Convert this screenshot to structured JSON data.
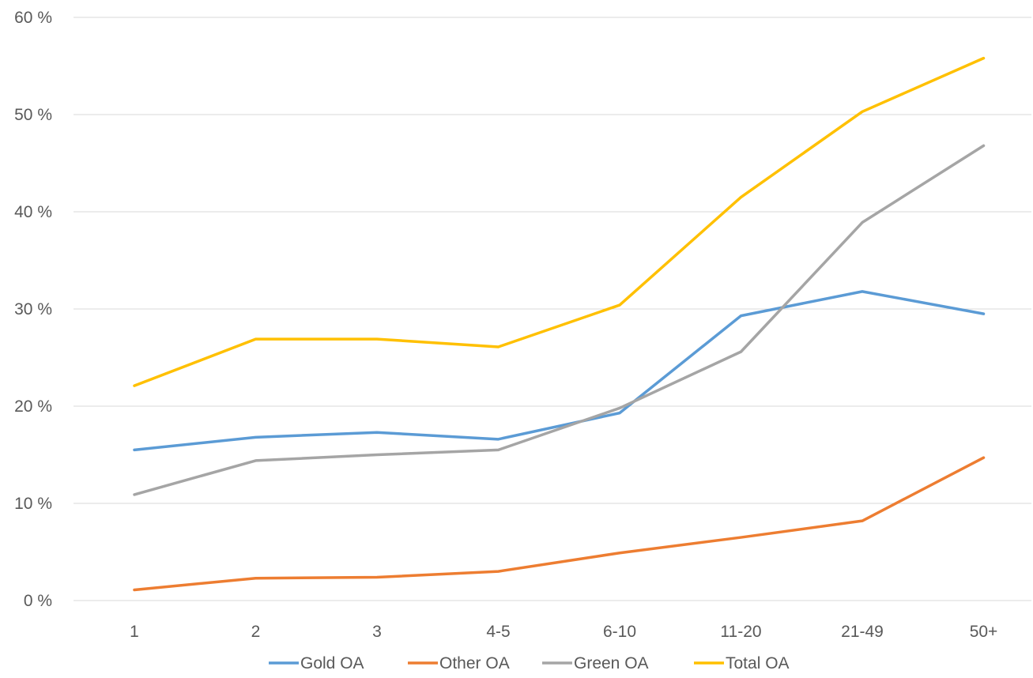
{
  "chart_data": {
    "type": "line",
    "title": "",
    "xlabel": "",
    "ylabel": "",
    "categories": [
      "1",
      "2",
      "3",
      "4-5",
      "6-10",
      "11-20",
      "21-49",
      "50+"
    ],
    "ylim": [
      0,
      60
    ],
    "y_ticks": [
      0,
      10,
      20,
      30,
      40,
      50,
      60
    ],
    "y_tick_labels": [
      "0 %",
      "10 %",
      "20 %",
      "30 %",
      "40 %",
      "50 %",
      "60 %"
    ],
    "grid": true,
    "legend_position": "bottom",
    "series": [
      {
        "name": "Gold OA",
        "color": "#5B9BD5",
        "values": [
          15.5,
          16.8,
          17.3,
          16.6,
          19.3,
          29.3,
          31.8,
          29.5
        ]
      },
      {
        "name": "Other OA",
        "color": "#ED7D31",
        "values": [
          1.1,
          2.3,
          2.4,
          3.0,
          4.9,
          6.5,
          8.2,
          14.7
        ]
      },
      {
        "name": "Green OA",
        "color": "#A5A5A5",
        "values": [
          10.9,
          14.4,
          15.0,
          15.5,
          19.8,
          25.6,
          38.9,
          46.8
        ]
      },
      {
        "name": "Total OA",
        "color": "#FFC000",
        "values": [
          22.1,
          26.9,
          26.9,
          26.1,
          30.4,
          41.5,
          50.3,
          55.8
        ]
      }
    ]
  }
}
